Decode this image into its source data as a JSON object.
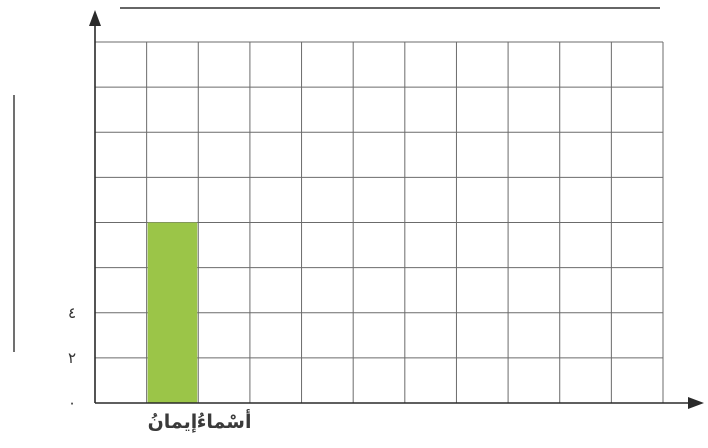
{
  "chart_data": {
    "type": "bar",
    "categories": [
      "إيمانُ",
      "أسْماءُ"
    ],
    "values": [
      8,
      0
    ],
    "ylim": [
      0,
      16
    ],
    "y_tick_labels": [
      "٠",
      "٢",
      "٤"
    ],
    "grid": true,
    "num_columns": 11,
    "num_rows": 8,
    "title": "",
    "ylabel": "",
    "bar_color": "#9bc548",
    "grid_color": "#6b6b6b",
    "axis_color": "#2a2a2a"
  }
}
